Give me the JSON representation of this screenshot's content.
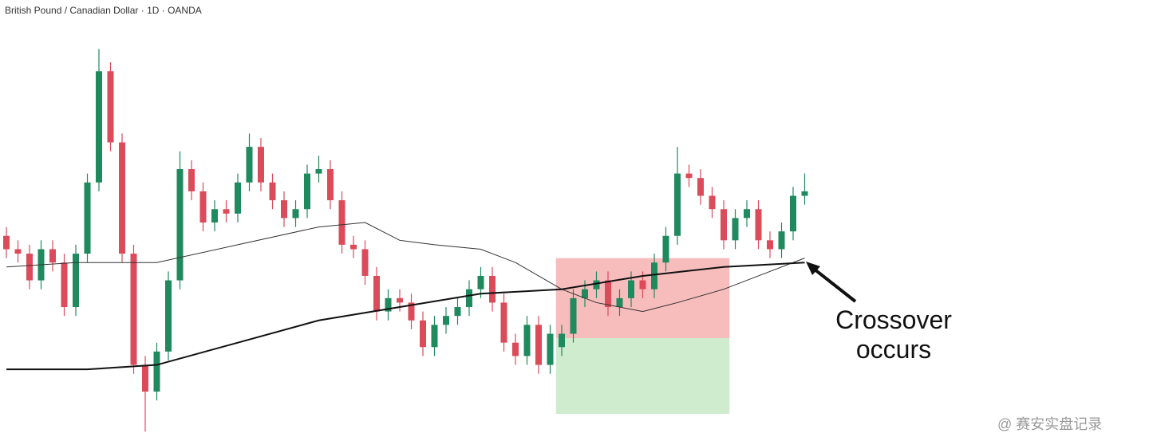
{
  "chart_data": {
    "type": "candlestick",
    "title": "British Pound / Canadian Dollar · 1D · OANDA",
    "open": [
      47,
      44,
      43,
      37,
      44,
      41,
      31,
      43,
      59,
      84,
      68,
      43,
      18,
      12,
      21,
      37,
      62,
      57,
      50,
      53,
      52,
      59,
      67,
      59,
      55,
      51,
      53,
      61,
      62,
      55,
      45,
      44,
      38,
      30,
      33,
      32,
      28,
      22,
      27,
      29,
      31,
      35,
      38,
      32,
      23,
      20,
      27,
      18,
      22,
      25,
      33,
      35,
      37,
      31,
      33,
      37,
      35,
      41,
      47,
      61,
      60,
      56,
      53,
      46,
      51,
      53,
      46,
      44,
      48,
      56
    ],
    "high": [
      49,
      46,
      45,
      46,
      46,
      43,
      45,
      61,
      89,
      86,
      70,
      45,
      20,
      23,
      39,
      66,
      64,
      59,
      55,
      55,
      61,
      70,
      69,
      61,
      57,
      55,
      63,
      65,
      64,
      57,
      47,
      46,
      40,
      35,
      35,
      34,
      30,
      29,
      31,
      33,
      37,
      40,
      40,
      34,
      25,
      29,
      29,
      27,
      27,
      35,
      37,
      39,
      39,
      35,
      39,
      39,
      43,
      49,
      67,
      63,
      62,
      58,
      55,
      53,
      55,
      55,
      48,
      50,
      58,
      61
    ],
    "low": [
      42,
      41,
      35,
      35,
      39,
      29,
      29,
      41,
      57,
      66,
      41,
      16,
      3,
      10,
      19,
      35,
      55,
      48,
      48,
      50,
      50,
      57,
      57,
      53,
      49,
      49,
      51,
      59,
      53,
      43,
      42,
      36,
      28,
      28,
      30,
      26,
      20,
      20,
      25,
      27,
      29,
      33,
      30,
      21,
      18,
      18,
      16,
      16,
      20,
      23,
      31,
      33,
      29,
      29,
      31,
      33,
      33,
      39,
      45,
      58,
      54,
      51,
      44,
      44,
      49,
      44,
      42,
      42,
      46,
      54
    ],
    "close": [
      44,
      43,
      37,
      44,
      41,
      31,
      43,
      59,
      84,
      68,
      43,
      18,
      12,
      21,
      37,
      62,
      57,
      50,
      53,
      52,
      59,
      67,
      59,
      55,
      51,
      53,
      61,
      62,
      55,
      45,
      44,
      38,
      30,
      33,
      32,
      28,
      22,
      27,
      29,
      31,
      35,
      38,
      32,
      23,
      20,
      27,
      18,
      25,
      25,
      33,
      35,
      37,
      31,
      33,
      37,
      35,
      41,
      47,
      61,
      60,
      56,
      53,
      46,
      51,
      53,
      46,
      44,
      48,
      56,
      57
    ],
    "up_color": "#1f8a5e",
    "down_color": "#dc4b5a",
    "lines": [
      {
        "color": "#333333",
        "x": [
          0,
          6,
          13,
          20,
          27,
          31,
          34,
          37,
          41,
          44,
          48,
          51,
          55,
          58,
          62,
          65,
          69
        ],
        "values": [
          40,
          41,
          41,
          45,
          49,
          50,
          46,
          45,
          44,
          41,
          35,
          32,
          30,
          32,
          35,
          38,
          42
        ]
      },
      {
        "color": "#111111",
        "x": [
          0,
          7,
          13,
          20,
          27,
          34,
          41,
          48,
          55,
          62,
          69
        ],
        "values": [
          17,
          17,
          18,
          23,
          28,
          31,
          34,
          35,
          38,
          40,
          41
        ]
      }
    ],
    "position": {
      "start": 48,
      "end": 62,
      "stop": 42,
      "entry": 24,
      "target": 7,
      "loss_color": "#f4a6a6",
      "profit_color": "#bfe6bf"
    },
    "ylim": [
      0,
      100
    ],
    "annotation": "Crossover occurs",
    "watermark": "@ 赛安实盘记录"
  }
}
